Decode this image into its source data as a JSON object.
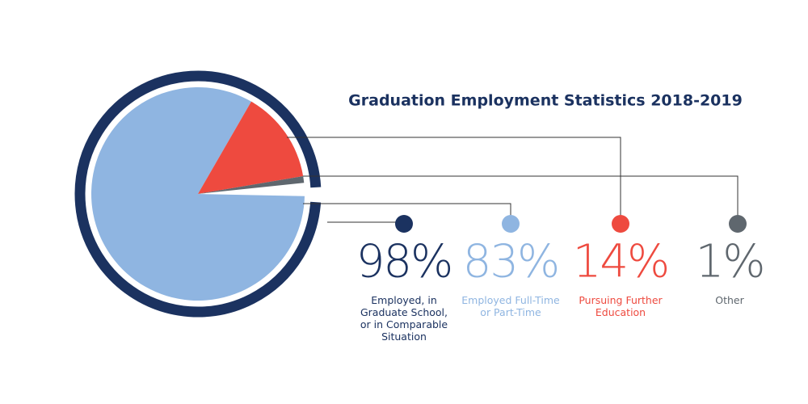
{
  "chart_data": {
    "type": "pie",
    "title": "Graduation Employment Statistics 2018-2019",
    "categories": [
      "Employed, in Graduate School, or in Comparable Situation",
      "Employed Full-Time or Part-Time",
      "Pursuing Further Education",
      "Other"
    ],
    "values": [
      98,
      83,
      14,
      1
    ],
    "value_labels": [
      "98%",
      "83%",
      "14%",
      "1%"
    ],
    "colors": [
      "#1b3260",
      "#8fb5e1",
      "#ee4a3f",
      "#5f676e"
    ]
  }
}
